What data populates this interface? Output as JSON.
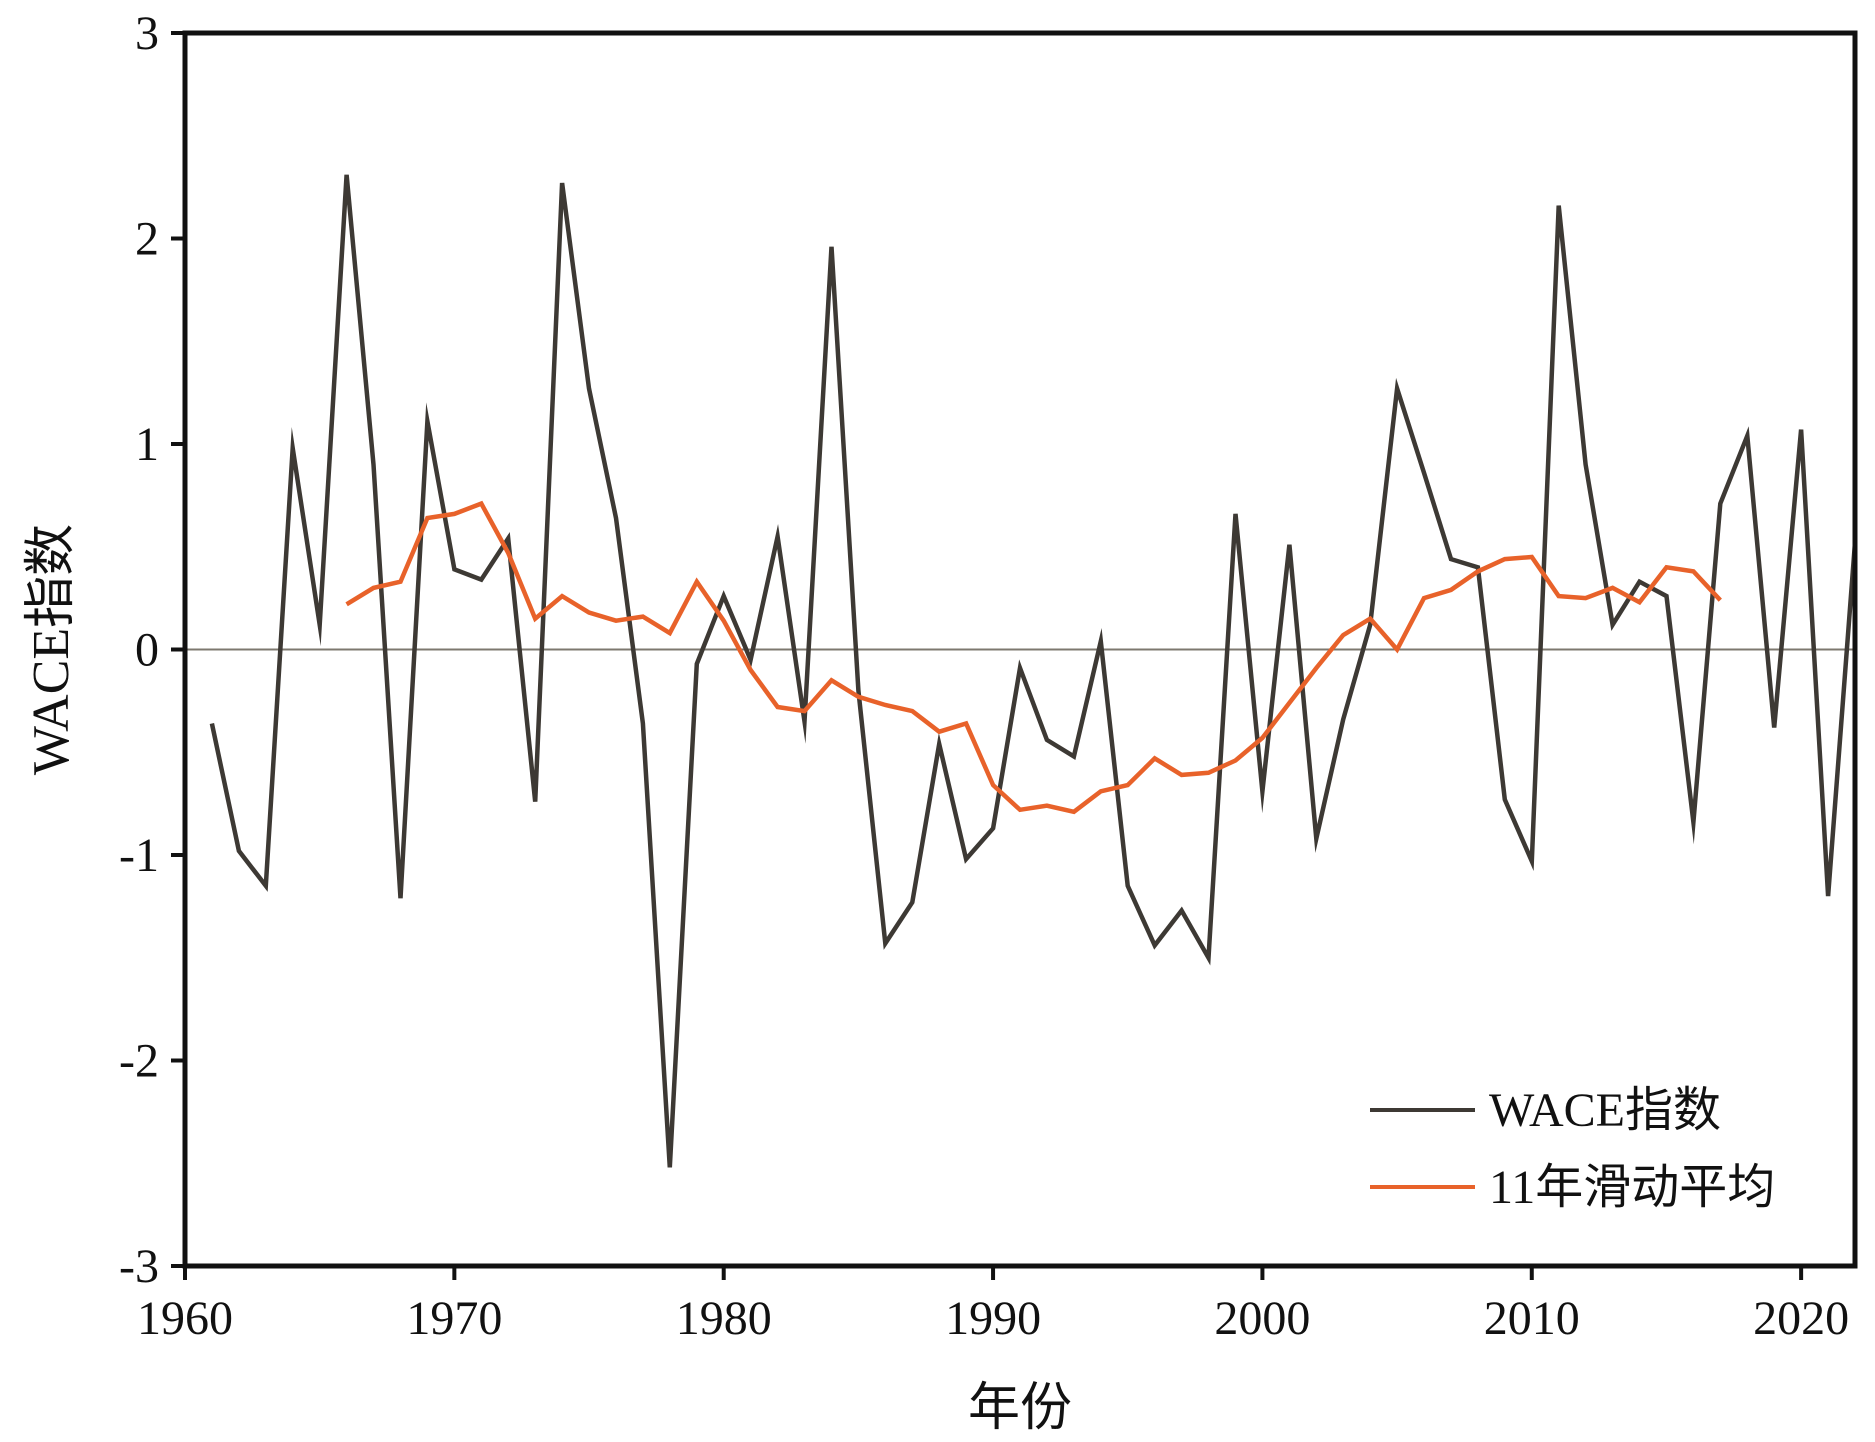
{
  "chart_data": {
    "type": "line",
    "title": "",
    "xlabel": "年份",
    "ylabel": "WACE指数",
    "xlim": [
      1960,
      2022
    ],
    "ylim": [
      -3,
      3
    ],
    "xticks": [
      1960,
      1970,
      1980,
      1990,
      2000,
      2010,
      2020
    ],
    "yticks": [
      -3,
      -2,
      -1,
      0,
      1,
      2,
      3
    ],
    "zero_line": true,
    "grid": false,
    "legend_position": "bottom-right",
    "series": [
      {
        "name": "WACE指数",
        "color": "#3d3934",
        "points": [
          [
            1961,
            -0.36
          ],
          [
            1962,
            -0.98
          ],
          [
            1963,
            -1.15
          ],
          [
            1964,
            0.98
          ],
          [
            1965,
            0.12
          ],
          [
            1966,
            2.31
          ],
          [
            1967,
            0.9
          ],
          [
            1968,
            -1.21
          ],
          [
            1969,
            1.11
          ],
          [
            1970,
            0.39
          ],
          [
            1971,
            0.34
          ],
          [
            1972,
            0.54
          ],
          [
            1973,
            -0.74
          ],
          [
            1974,
            2.27
          ],
          [
            1975,
            1.27
          ],
          [
            1976,
            0.64
          ],
          [
            1977,
            -0.36
          ],
          [
            1978,
            -2.52
          ],
          [
            1979,
            -0.07
          ],
          [
            1980,
            0.26
          ],
          [
            1981,
            -0.05
          ],
          [
            1982,
            0.55
          ],
          [
            1983,
            -0.35
          ],
          [
            1984,
            1.96
          ],
          [
            1985,
            -0.2
          ],
          [
            1986,
            -1.43
          ],
          [
            1987,
            -1.23
          ],
          [
            1988,
            -0.46
          ],
          [
            1989,
            -1.02
          ],
          [
            1990,
            -0.87
          ],
          [
            1991,
            -0.09
          ],
          [
            1992,
            -0.44
          ],
          [
            1993,
            -0.52
          ],
          [
            1994,
            0.04
          ],
          [
            1995,
            -1.15
          ],
          [
            1996,
            -1.44
          ],
          [
            1997,
            -1.27
          ],
          [
            1998,
            -1.5
          ],
          [
            1999,
            0.66
          ],
          [
            2000,
            -0.69
          ],
          [
            2001,
            0.51
          ],
          [
            2002,
            -0.92
          ],
          [
            2003,
            -0.34
          ],
          [
            2004,
            0.12
          ],
          [
            2005,
            1.27
          ],
          [
            2006,
            0.86
          ],
          [
            2007,
            0.44
          ],
          [
            2008,
            0.4
          ],
          [
            2009,
            -0.73
          ],
          [
            2010,
            -1.03
          ],
          [
            2011,
            2.16
          ],
          [
            2012,
            0.9
          ],
          [
            2013,
            0.12
          ],
          [
            2014,
            0.33
          ],
          [
            2015,
            0.26
          ],
          [
            2016,
            -0.84
          ],
          [
            2017,
            0.71
          ],
          [
            2018,
            1.04
          ],
          [
            2019,
            -0.38
          ],
          [
            2020,
            1.07
          ],
          [
            2021,
            -1.2
          ],
          [
            2022,
            0.52
          ]
        ]
      },
      {
        "name": "11年滑动平均",
        "color": "#e8622a",
        "points": [
          [
            1966,
            0.22
          ],
          [
            1967,
            0.3
          ],
          [
            1968,
            0.33
          ],
          [
            1969,
            0.64
          ],
          [
            1970,
            0.66
          ],
          [
            1971,
            0.71
          ],
          [
            1972,
            0.47
          ],
          [
            1973,
            0.15
          ],
          [
            1974,
            0.26
          ],
          [
            1975,
            0.18
          ],
          [
            1976,
            0.14
          ],
          [
            1977,
            0.16
          ],
          [
            1978,
            0.08
          ],
          [
            1979,
            0.33
          ],
          [
            1980,
            0.14
          ],
          [
            1981,
            -0.1
          ],
          [
            1982,
            -0.28
          ],
          [
            1983,
            -0.3
          ],
          [
            1984,
            -0.15
          ],
          [
            1985,
            -0.23
          ],
          [
            1986,
            -0.27
          ],
          [
            1987,
            -0.3
          ],
          [
            1988,
            -0.4
          ],
          [
            1989,
            -0.36
          ],
          [
            1990,
            -0.66
          ],
          [
            1991,
            -0.78
          ],
          [
            1992,
            -0.76
          ],
          [
            1993,
            -0.79
          ],
          [
            1994,
            -0.69
          ],
          [
            1995,
            -0.66
          ],
          [
            1996,
            -0.53
          ],
          [
            1997,
            -0.61
          ],
          [
            1998,
            -0.6
          ],
          [
            1999,
            -0.54
          ],
          [
            2000,
            -0.43
          ],
          [
            2001,
            -0.26
          ],
          [
            2002,
            -0.09
          ],
          [
            2003,
            0.07
          ],
          [
            2004,
            0.15
          ],
          [
            2005,
            0.0
          ],
          [
            2006,
            0.25
          ],
          [
            2007,
            0.29
          ],
          [
            2008,
            0.38
          ],
          [
            2009,
            0.44
          ],
          [
            2010,
            0.45
          ],
          [
            2011,
            0.26
          ],
          [
            2012,
            0.25
          ],
          [
            2013,
            0.3
          ],
          [
            2014,
            0.23
          ],
          [
            2015,
            0.4
          ],
          [
            2016,
            0.38
          ],
          [
            2017,
            0.24
          ]
        ]
      }
    ]
  }
}
